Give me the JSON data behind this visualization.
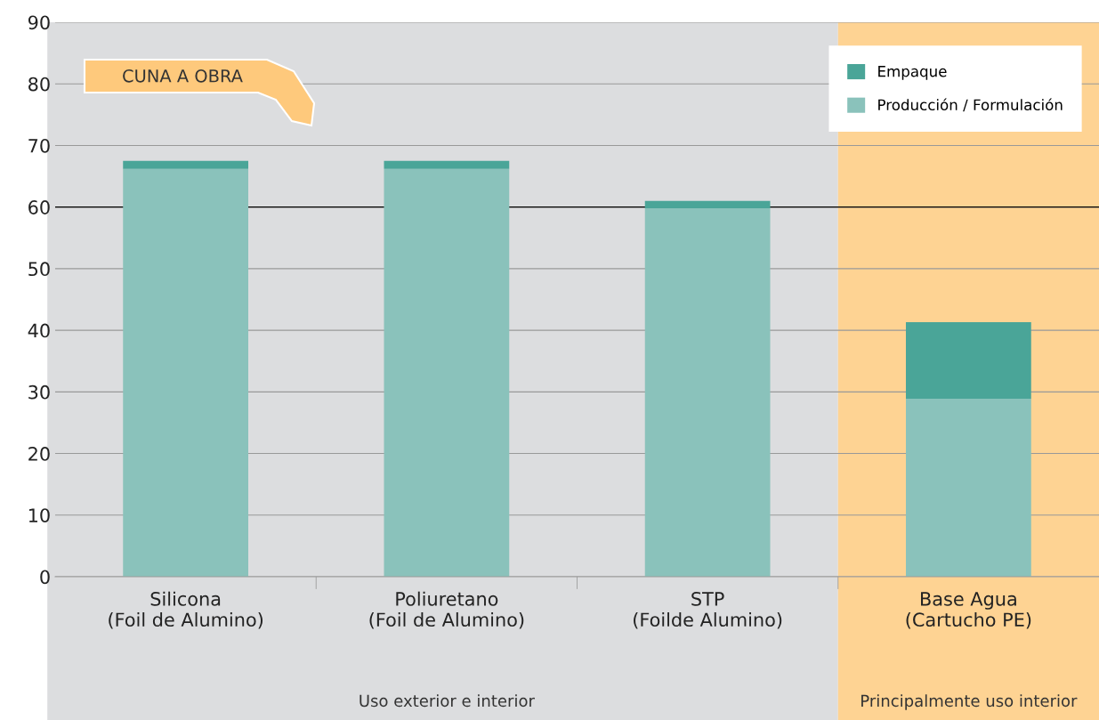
{
  "chart_data": {
    "type": "bar",
    "stacked": true,
    "categories": [
      "Silicona\n(Foil de Alumino)",
      "Poliuretano\n(Foil de Alumino)",
      "STP\n(Foilde Alumino)",
      "Base Agua\n(Cartucho PE)"
    ],
    "series": [
      {
        "name": "Producción / Formulación",
        "color": "#8ac2bb",
        "values": [
          66.2,
          66.2,
          59.8,
          28.9
        ]
      },
      {
        "name": "Empaque",
        "color": "#4aa598",
        "values": [
          1.3,
          1.3,
          1.2,
          12.4
        ]
      }
    ],
    "ylim": [
      0,
      90
    ],
    "yticks": [
      0,
      10,
      20,
      30,
      40,
      50,
      60,
      70,
      80,
      90
    ],
    "grid": "y",
    "legend": "top right",
    "bands": [
      {
        "axis": "x",
        "from": "Silicona\n(Foil de Alumino)",
        "to": "STP\n(Foilde Alumino)",
        "label": "Uso exterior e interior",
        "color": "#dcdddf"
      },
      {
        "axis": "x",
        "from": "Base Agua\n(Cartucho PE)",
        "to": "Base Agua\n(Cartucho PE)",
        "label": "Principalmente uso interior",
        "color": "#fed393"
      }
    ],
    "ref_lines": [
      {
        "axis": "y",
        "value": 60,
        "color": "#000000"
      }
    ],
    "annotations": [
      "CUNA A OBRA"
    ]
  }
}
